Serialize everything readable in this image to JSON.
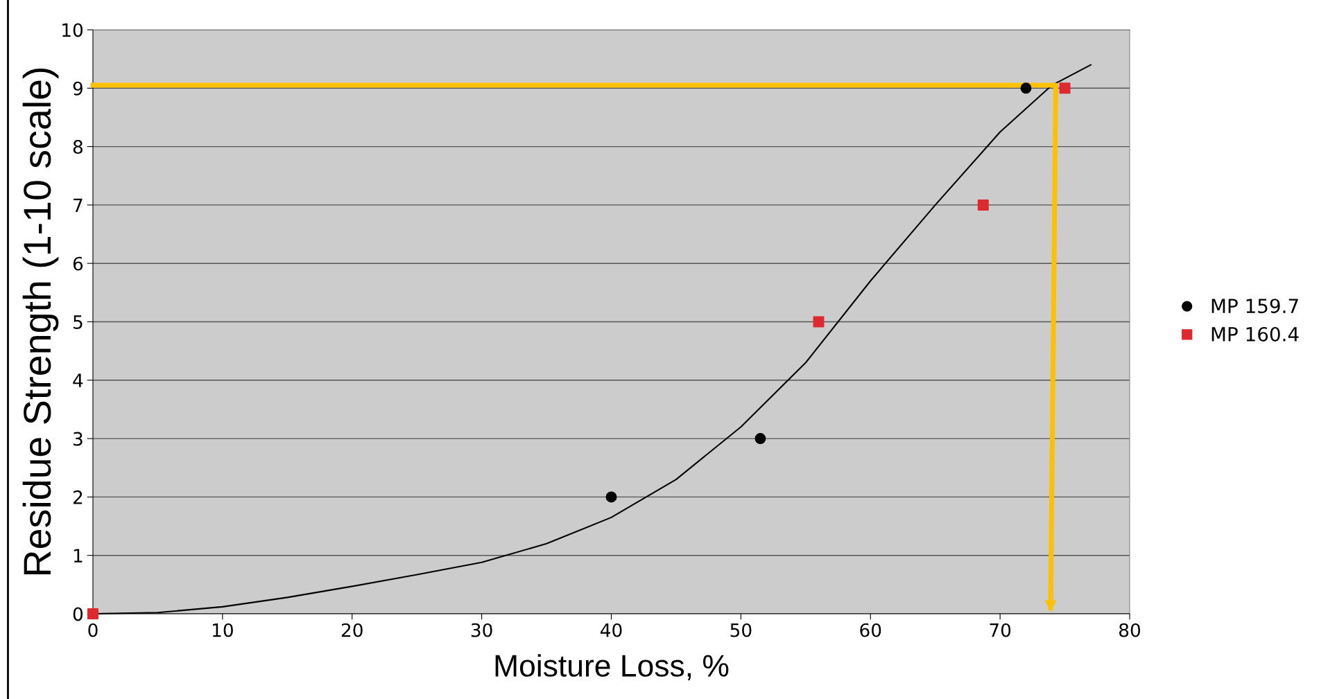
{
  "chart_data": {
    "type": "scatter",
    "xlabel": "Moisture Loss, %",
    "ylabel": "Residue Strength (1-10 scale)",
    "xlim": [
      0,
      80
    ],
    "xticks": [
      0,
      10,
      20,
      30,
      40,
      50,
      60,
      70,
      80
    ],
    "ylim": [
      0,
      10
    ],
    "yticks": [
      0,
      1,
      2,
      3,
      4,
      5,
      6,
      7,
      8,
      9,
      10
    ],
    "grid": "y",
    "legend": "right",
    "series": [
      {
        "name": "MP 159.7",
        "color": "#000000",
        "marker": "circle",
        "x": [
          40,
          51.5,
          72
        ],
        "values": [
          2,
          3,
          9
        ]
      },
      {
        "name": "MP 160.4",
        "color": "#dd2a30",
        "marker": "square",
        "x": [
          0,
          56,
          68.7,
          75
        ],
        "values": [
          0,
          5,
          7,
          9
        ]
      },
      {
        "type": "line",
        "color": "#000000",
        "x": [
          0,
          5,
          10,
          15,
          20,
          25,
          30,
          35,
          40,
          45,
          50,
          55,
          60,
          65,
          70,
          74,
          77
        ],
        "values": [
          0,
          0.02,
          0.12,
          0.28,
          0.47,
          0.67,
          0.88,
          1.2,
          1.65,
          2.3,
          3.2,
          4.3,
          5.7,
          7.0,
          8.25,
          9.05,
          9.4
        ]
      },
      {
        "type": "line",
        "color": "#ffc000",
        "x": [
          0,
          74.3,
          73.9
        ],
        "values": [
          9.05,
          9.05,
          0.1
        ]
      }
    ]
  }
}
